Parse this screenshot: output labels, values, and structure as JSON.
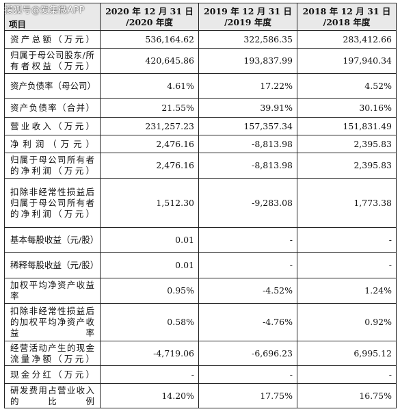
{
  "watermark": "搜狐号@爱集微APP",
  "table": {
    "header": {
      "label": "项目",
      "col1_line1": "2020 年 12 月 31 日",
      "col1_line2": "/2020 年度",
      "col2_line1": "2019 年 12 月 31 日",
      "col2_line2": "/2019 年度",
      "col3_line1": "2018 年 12 月 31 日",
      "col3_line2": "/2018 年度"
    },
    "rows": [
      {
        "label": "资产总额（万元）",
        "v2020": "536,164.62",
        "v2019": "322,586.35",
        "v2018": "283,412.66"
      },
      {
        "label": "归属于母公司股东/所有者权益（万元）",
        "v2020": "420,645.86",
        "v2019": "193,837.99",
        "v2018": "197,940.34"
      },
      {
        "label": "资产负债率（母公司）",
        "v2020": "4.61%",
        "v2019": "17.22%",
        "v2018": "4.52%"
      },
      {
        "label": "资产负债率（合并）",
        "v2020": "21.55%",
        "v2019": "39.91%",
        "v2018": "30.16%"
      },
      {
        "label": "营业收入（万元）",
        "v2020": "231,257.23",
        "v2019": "157,357.34",
        "v2018": "151,831.49"
      },
      {
        "label": "净利润（万元）",
        "v2020": "2,476.16",
        "v2019": "-8,813.98",
        "v2018": "2,395.83"
      },
      {
        "label": "归属于母公司所有者的净利润（万元）",
        "v2020": "2,476.16",
        "v2019": "-8,813.98",
        "v2018": "2,395.83"
      },
      {
        "label": "扣除非经常性损益后归属于母公司所有者的净利润（万元）",
        "v2020": "1,512.30",
        "v2019": "-9,283.08",
        "v2018": "1,773.38"
      },
      {
        "label": "基本每股收益（元/股）",
        "v2020": "0.01",
        "v2019": "-",
        "v2018": "-"
      },
      {
        "label": "稀释每股收益（元/股）",
        "v2020": "0.01",
        "v2019": "-",
        "v2018": "-"
      },
      {
        "label": "加权平均净资产收益率",
        "v2020": "0.95%",
        "v2019": "-4.52%",
        "v2018": "1.24%"
      },
      {
        "label": "扣除非经常性损益后的加权平均净资产收益率",
        "v2020": "0.58%",
        "v2019": "-4.76%",
        "v2018": "0.92%"
      },
      {
        "label": "经营活动产生的现金流量净额（万元）",
        "v2020": "-4,719.06",
        "v2019": "-6,696.23",
        "v2018": "6,995.12"
      },
      {
        "label": "现金分红（万元）",
        "v2020": "-",
        "v2019": "-",
        "v2018": "-"
      },
      {
        "label": "研发费用占营业收入的比例",
        "v2020": "14.20%",
        "v2019": "17.75%",
        "v2018": "16.75%"
      }
    ]
  }
}
